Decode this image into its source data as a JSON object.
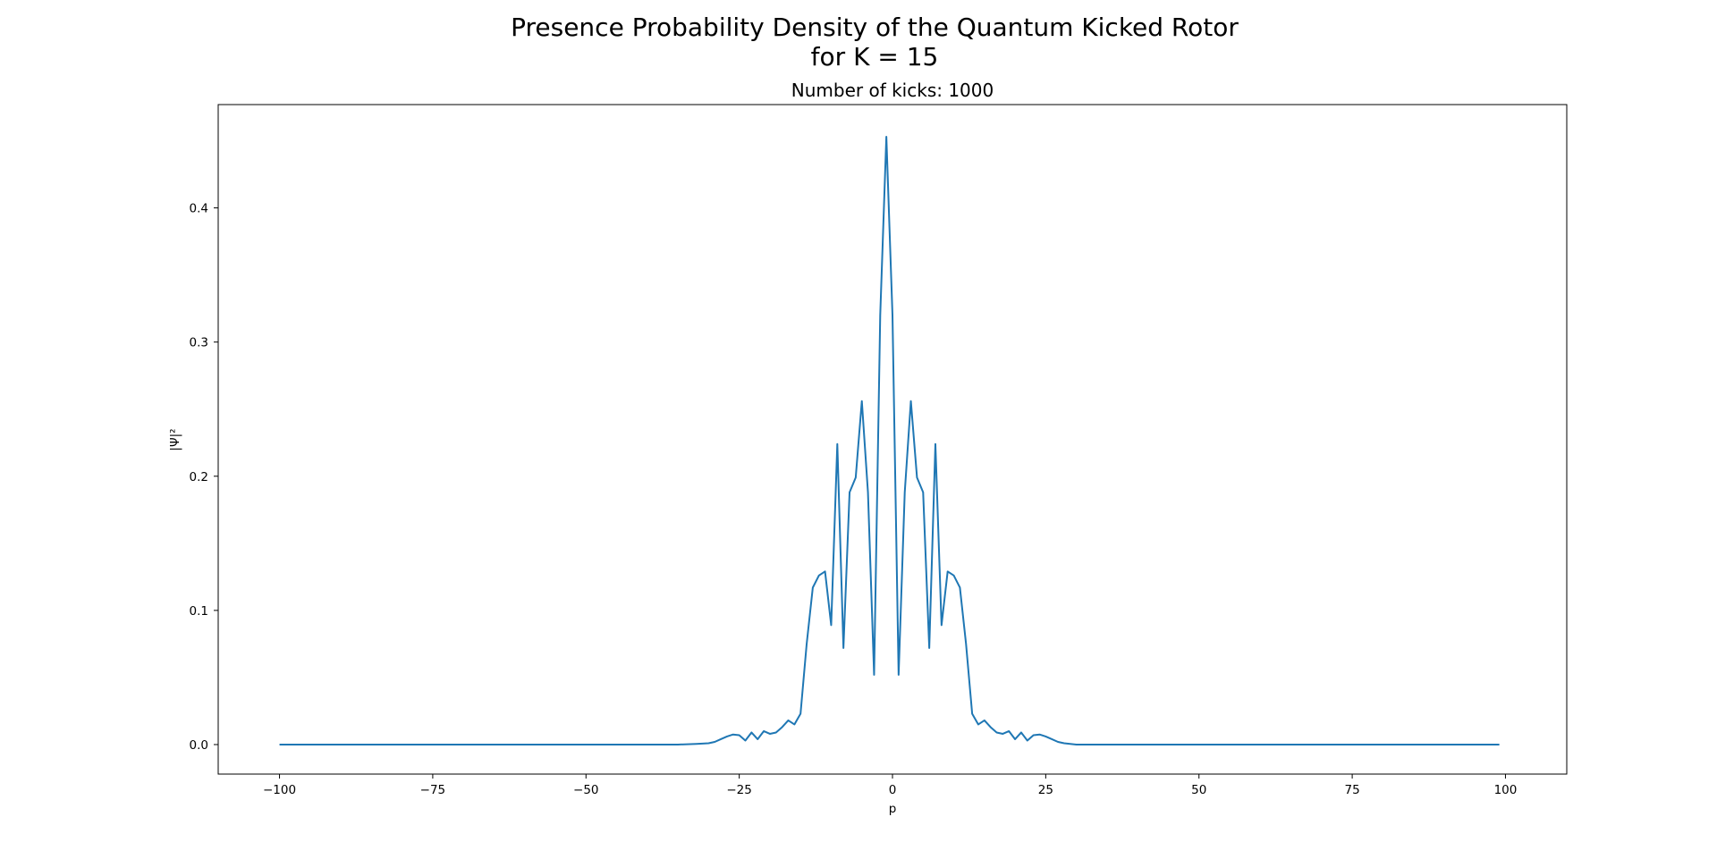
{
  "chart_data": {
    "type": "line",
    "title_line1": "Presence Probability Density of the Quantum Kicked Rotor",
    "title_line2": "for K = 15",
    "subtitle": "Number of kicks: 1000",
    "xlabel": "p",
    "ylabel": "|Ψ|²",
    "xlim": [
      -110,
      110
    ],
    "ylim": [
      -0.022,
      0.477
    ],
    "grid": false,
    "x_ticks": [
      -100,
      -75,
      -50,
      -25,
      0,
      25,
      50,
      75,
      100
    ],
    "x_tick_labels": [
      "−100",
      "−75",
      "−50",
      "−25",
      "0",
      "25",
      "50",
      "75",
      "100"
    ],
    "y_ticks": [
      0.0,
      0.1,
      0.2,
      0.3,
      0.4
    ],
    "y_tick_labels": [
      "0.0",
      "0.1",
      "0.2",
      "0.3",
      "0.4"
    ],
    "line_color": "#1f77b4",
    "series": [
      {
        "x": [
          -100,
          -35,
          -32,
          -30,
          -29,
          -28,
          -27,
          -26,
          -25,
          -24,
          -23,
          -22,
          -21,
          -20,
          -19,
          -18,
          -17,
          -16,
          -15,
          -14,
          -13,
          -12,
          -11,
          -10,
          -9,
          -8,
          -7,
          -6,
          -5,
          -4,
          -3,
          -2,
          -1,
          0,
          1,
          2,
          3,
          4,
          5,
          6,
          7,
          8,
          9,
          10,
          11,
          12,
          13,
          14,
          15,
          16,
          17,
          18,
          19,
          20,
          21,
          22,
          23,
          24,
          25,
          26,
          27,
          28,
          29,
          30,
          32,
          35,
          99
        ],
        "y": [
          0.0,
          0.0,
          0.0005,
          0.001,
          0.002,
          0.004,
          0.006,
          0.0075,
          0.007,
          0.003,
          0.009,
          0.004,
          0.01,
          0.008,
          0.009,
          0.013,
          0.018,
          0.015,
          0.023,
          0.075,
          0.117,
          0.126,
          0.129,
          0.089,
          0.224,
          0.072,
          0.188,
          0.199,
          0.256,
          0.188,
          0.052,
          0.32,
          0.453,
          0.32,
          0.052,
          0.188,
          0.256,
          0.199,
          0.188,
          0.072,
          0.224,
          0.089,
          0.129,
          0.126,
          0.117,
          0.075,
          0.023,
          0.015,
          0.018,
          0.013,
          0.009,
          0.008,
          0.01,
          0.004,
          0.009,
          0.003,
          0.007,
          0.0075,
          0.006,
          0.004,
          0.002,
          0.001,
          0.0005,
          0.0,
          0.0,
          0.0,
          0.0
        ]
      }
    ]
  }
}
